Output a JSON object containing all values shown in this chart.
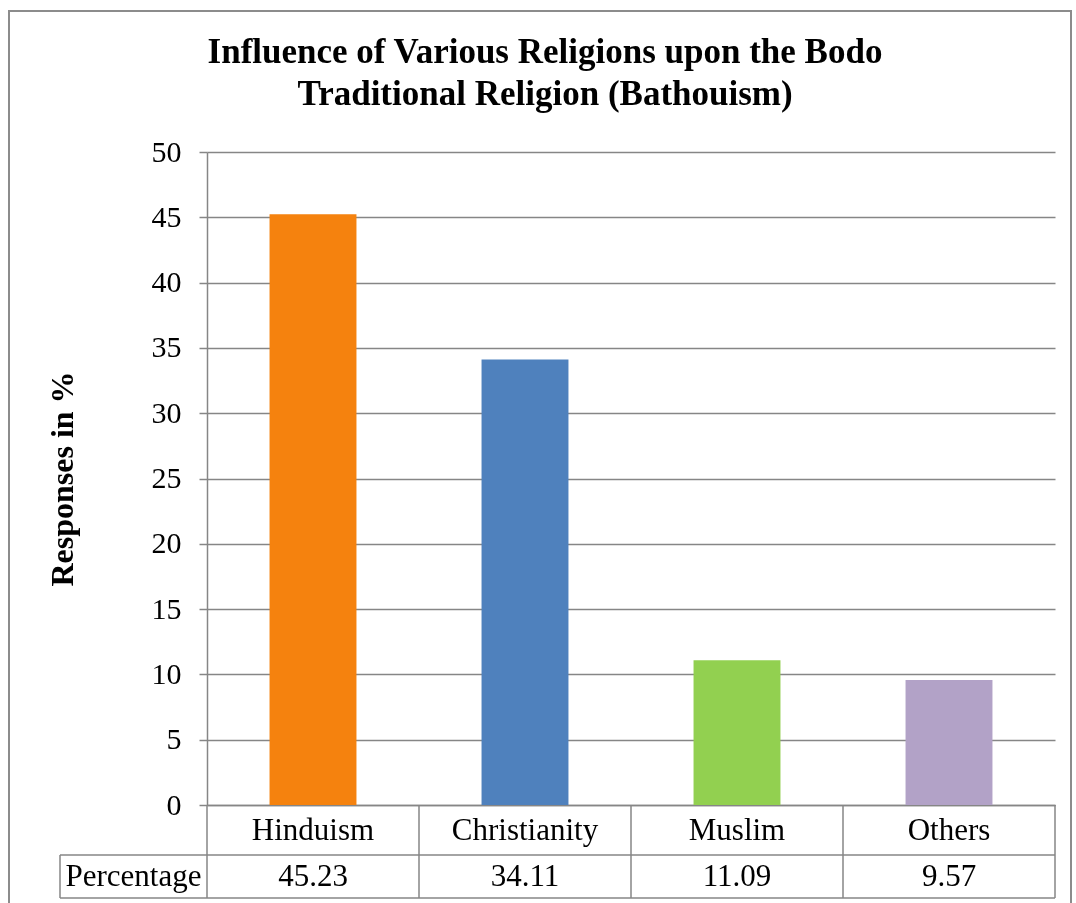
{
  "chart_data": {
    "type": "bar",
    "title": "Influence of Various Religions upon the Bodo\nTraditional Religion (Bathouism)",
    "ylabel": "Responses in %",
    "categories": [
      "Hinduism",
      "Christianity",
      "Muslim",
      "Others"
    ],
    "series": [
      {
        "name": "Percentage",
        "colors": [
          "#f5820e",
          "#4f81bd",
          "#92d050",
          "#b2a2c7"
        ],
        "values": [
          45.23,
          34.11,
          11.09,
          9.57
        ]
      }
    ],
    "ylim": [
      0,
      50
    ],
    "yticks": [
      0,
      5,
      10,
      15,
      20,
      25,
      30,
      35,
      40,
      45,
      50
    ],
    "grid": "y",
    "data_labels": true
  }
}
